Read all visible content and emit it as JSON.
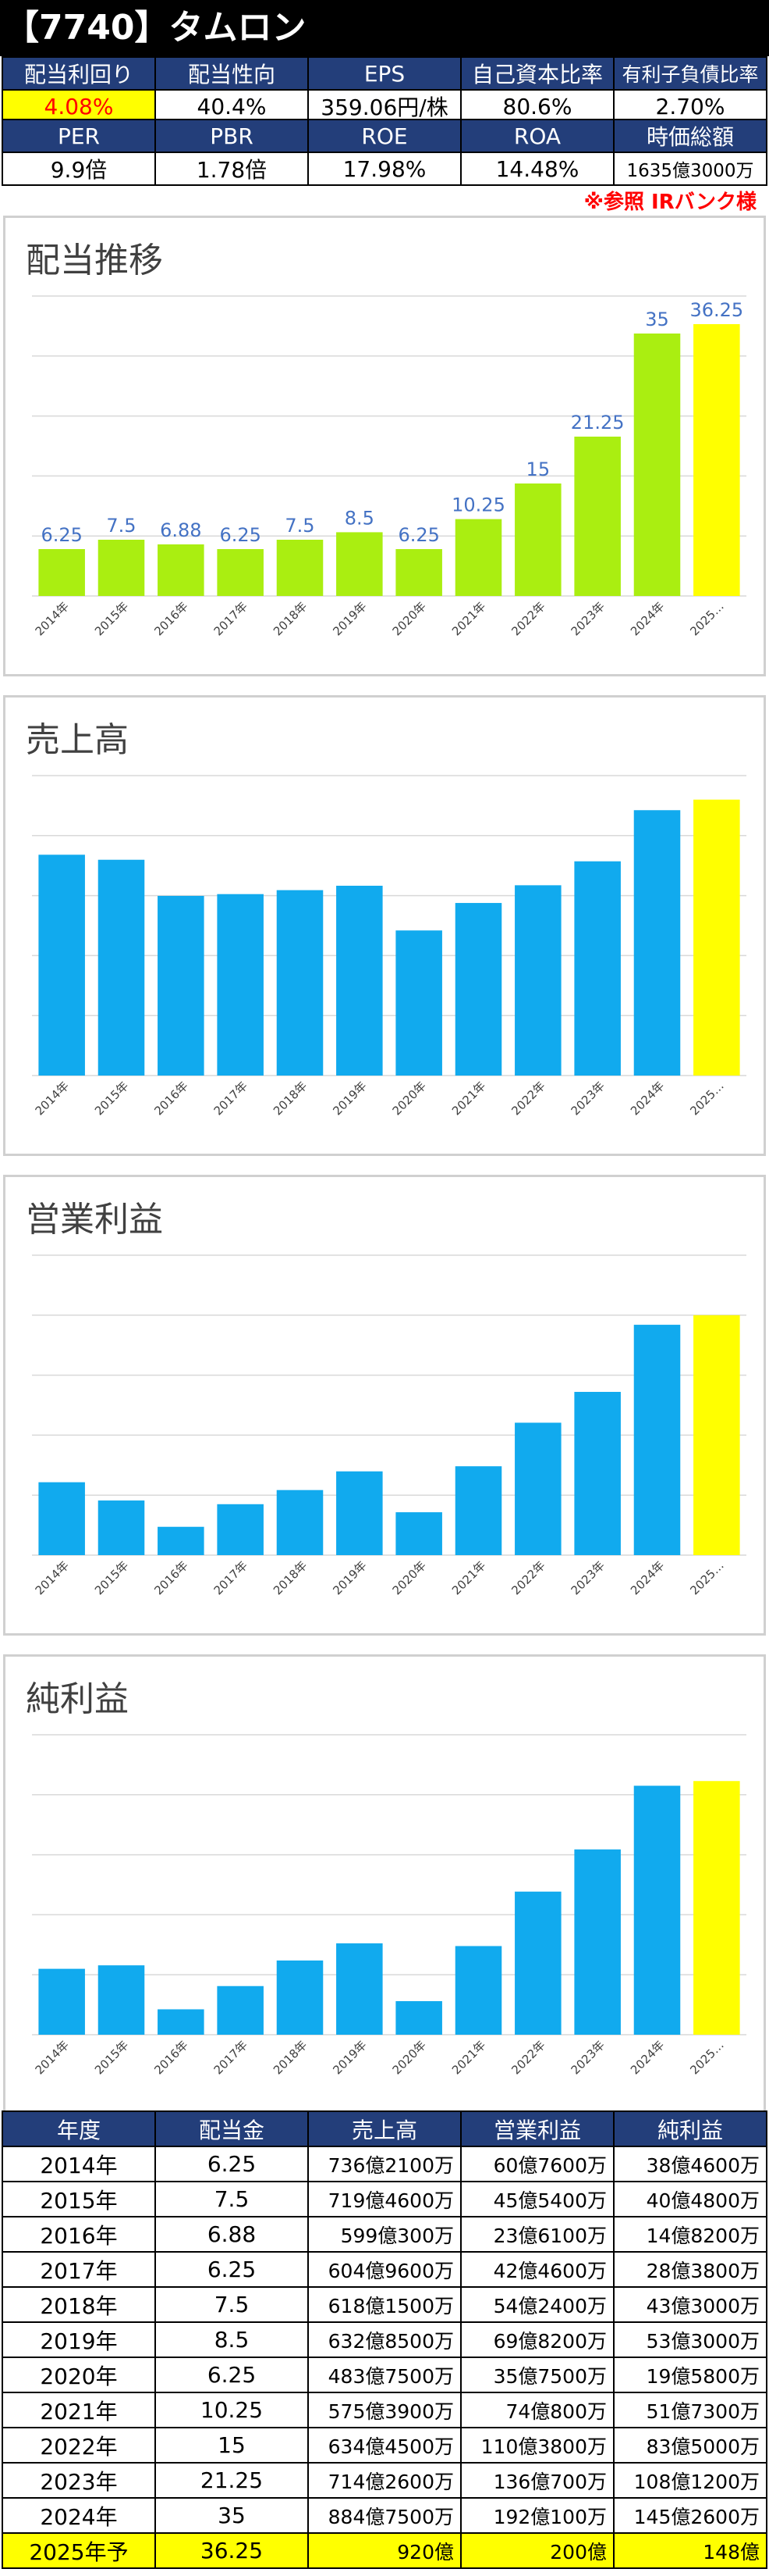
{
  "header": {
    "title": "【7740】タムロン"
  },
  "metrics_row1": {
    "labels": [
      "配当利回り",
      "配当性向",
      "EPS",
      "自己資本比率",
      "有利子負債比率"
    ],
    "values": [
      "4.08%",
      "40.4%",
      "359.06円/株",
      "80.6%",
      "2.70%"
    ]
  },
  "metrics_row2": {
    "labels": [
      "PER",
      "PBR",
      "ROE",
      "ROA",
      "時価総額"
    ],
    "values": [
      "9.9倍",
      "1.78倍",
      "17.98%",
      "14.48%",
      "1635億3000万"
    ]
  },
  "note": "※参照 IRバンク様",
  "colors": {
    "header_bg": "#233e7a",
    "dividend_bar": "#aaee11",
    "blue_bar": "#11aaee",
    "forecast_bar": "#ffff00",
    "label_color": "#4472c4",
    "highlight_text": "#ff0000"
  },
  "chart_data": [
    {
      "type": "bar",
      "title": "配当推移",
      "categories": [
        "2014年",
        "2015年",
        "2016年",
        "2017年",
        "2018年",
        "2019年",
        "2020年",
        "2021年",
        "2022年",
        "2023年",
        "2024年",
        "2025…"
      ],
      "values": [
        6.25,
        7.5,
        6.88,
        6.25,
        7.5,
        8.5,
        6.25,
        10.25,
        15,
        21.25,
        35,
        36.25
      ],
      "data_labels": [
        "6.25",
        "7.5",
        "6.88",
        "6.25",
        "7.5",
        "8.5",
        "6.25",
        "10.25",
        "15",
        "21.25",
        "35",
        "36.25"
      ],
      "ylim": [
        0,
        40
      ],
      "grid": true
    },
    {
      "type": "bar",
      "title": "売上高",
      "categories": [
        "2014年",
        "2015年",
        "2016年",
        "2017年",
        "2018年",
        "2019年",
        "2020年",
        "2021年",
        "2022年",
        "2023年",
        "2024年",
        "2025…"
      ],
      "values": [
        736.21,
        719.46,
        599.03,
        604.96,
        618.15,
        632.85,
        483.75,
        575.39,
        634.45,
        714.26,
        884.75,
        920
      ],
      "ylim": [
        0,
        1000
      ],
      "grid": true
    },
    {
      "type": "bar",
      "title": "営業利益",
      "categories": [
        "2014年",
        "2015年",
        "2016年",
        "2017年",
        "2018年",
        "2019年",
        "2020年",
        "2021年",
        "2022年",
        "2023年",
        "2024年",
        "2025…"
      ],
      "values": [
        60.76,
        45.54,
        23.61,
        42.46,
        54.24,
        69.82,
        35.75,
        74.08,
        110.38,
        136.07,
        192.01,
        200
      ],
      "ylim": [
        0,
        250
      ],
      "grid": true
    },
    {
      "type": "bar",
      "title": "純利益",
      "categories": [
        "2014年",
        "2015年",
        "2016年",
        "2017年",
        "2018年",
        "2019年",
        "2020年",
        "2021年",
        "2022年",
        "2023年",
        "2024年",
        "2025…"
      ],
      "values": [
        38.46,
        40.48,
        14.82,
        28.38,
        43.3,
        53.3,
        19.58,
        51.73,
        83.5,
        108.12,
        145.26,
        148
      ],
      "ylim": [
        0,
        175
      ],
      "grid": true
    }
  ],
  "history_table": {
    "headers": [
      "年度",
      "配当金",
      "売上高",
      "営業利益",
      "純利益"
    ],
    "rows": [
      [
        "2014年",
        "6.25",
        "736億2100万",
        "60億7600万",
        "38億4600万"
      ],
      [
        "2015年",
        "7.5",
        "719億4600万",
        "45億5400万",
        "40億4800万"
      ],
      [
        "2016年",
        "6.88",
        "599億300万",
        "23億6100万",
        "14億8200万"
      ],
      [
        "2017年",
        "6.25",
        "604億9600万",
        "42億4600万",
        "28億3800万"
      ],
      [
        "2018年",
        "7.5",
        "618億1500万",
        "54億2400万",
        "43億3000万"
      ],
      [
        "2019年",
        "8.5",
        "632億8500万",
        "69億8200万",
        "53億3000万"
      ],
      [
        "2020年",
        "6.25",
        "483億7500万",
        "35億7500万",
        "19億5800万"
      ],
      [
        "2021年",
        "10.25",
        "575億3900万",
        "74億800万",
        "51億7300万"
      ],
      [
        "2022年",
        "15",
        "634億4500万",
        "110億3800万",
        "83億5000万"
      ],
      [
        "2023年",
        "21.25",
        "714億2600万",
        "136億700万",
        "108億1200万"
      ],
      [
        "2024年",
        "35",
        "884億7500万",
        "192億100万",
        "145億2600万"
      ],
      [
        "2025年予",
        "36.25",
        "920億",
        "200億",
        "148億"
      ]
    ]
  }
}
